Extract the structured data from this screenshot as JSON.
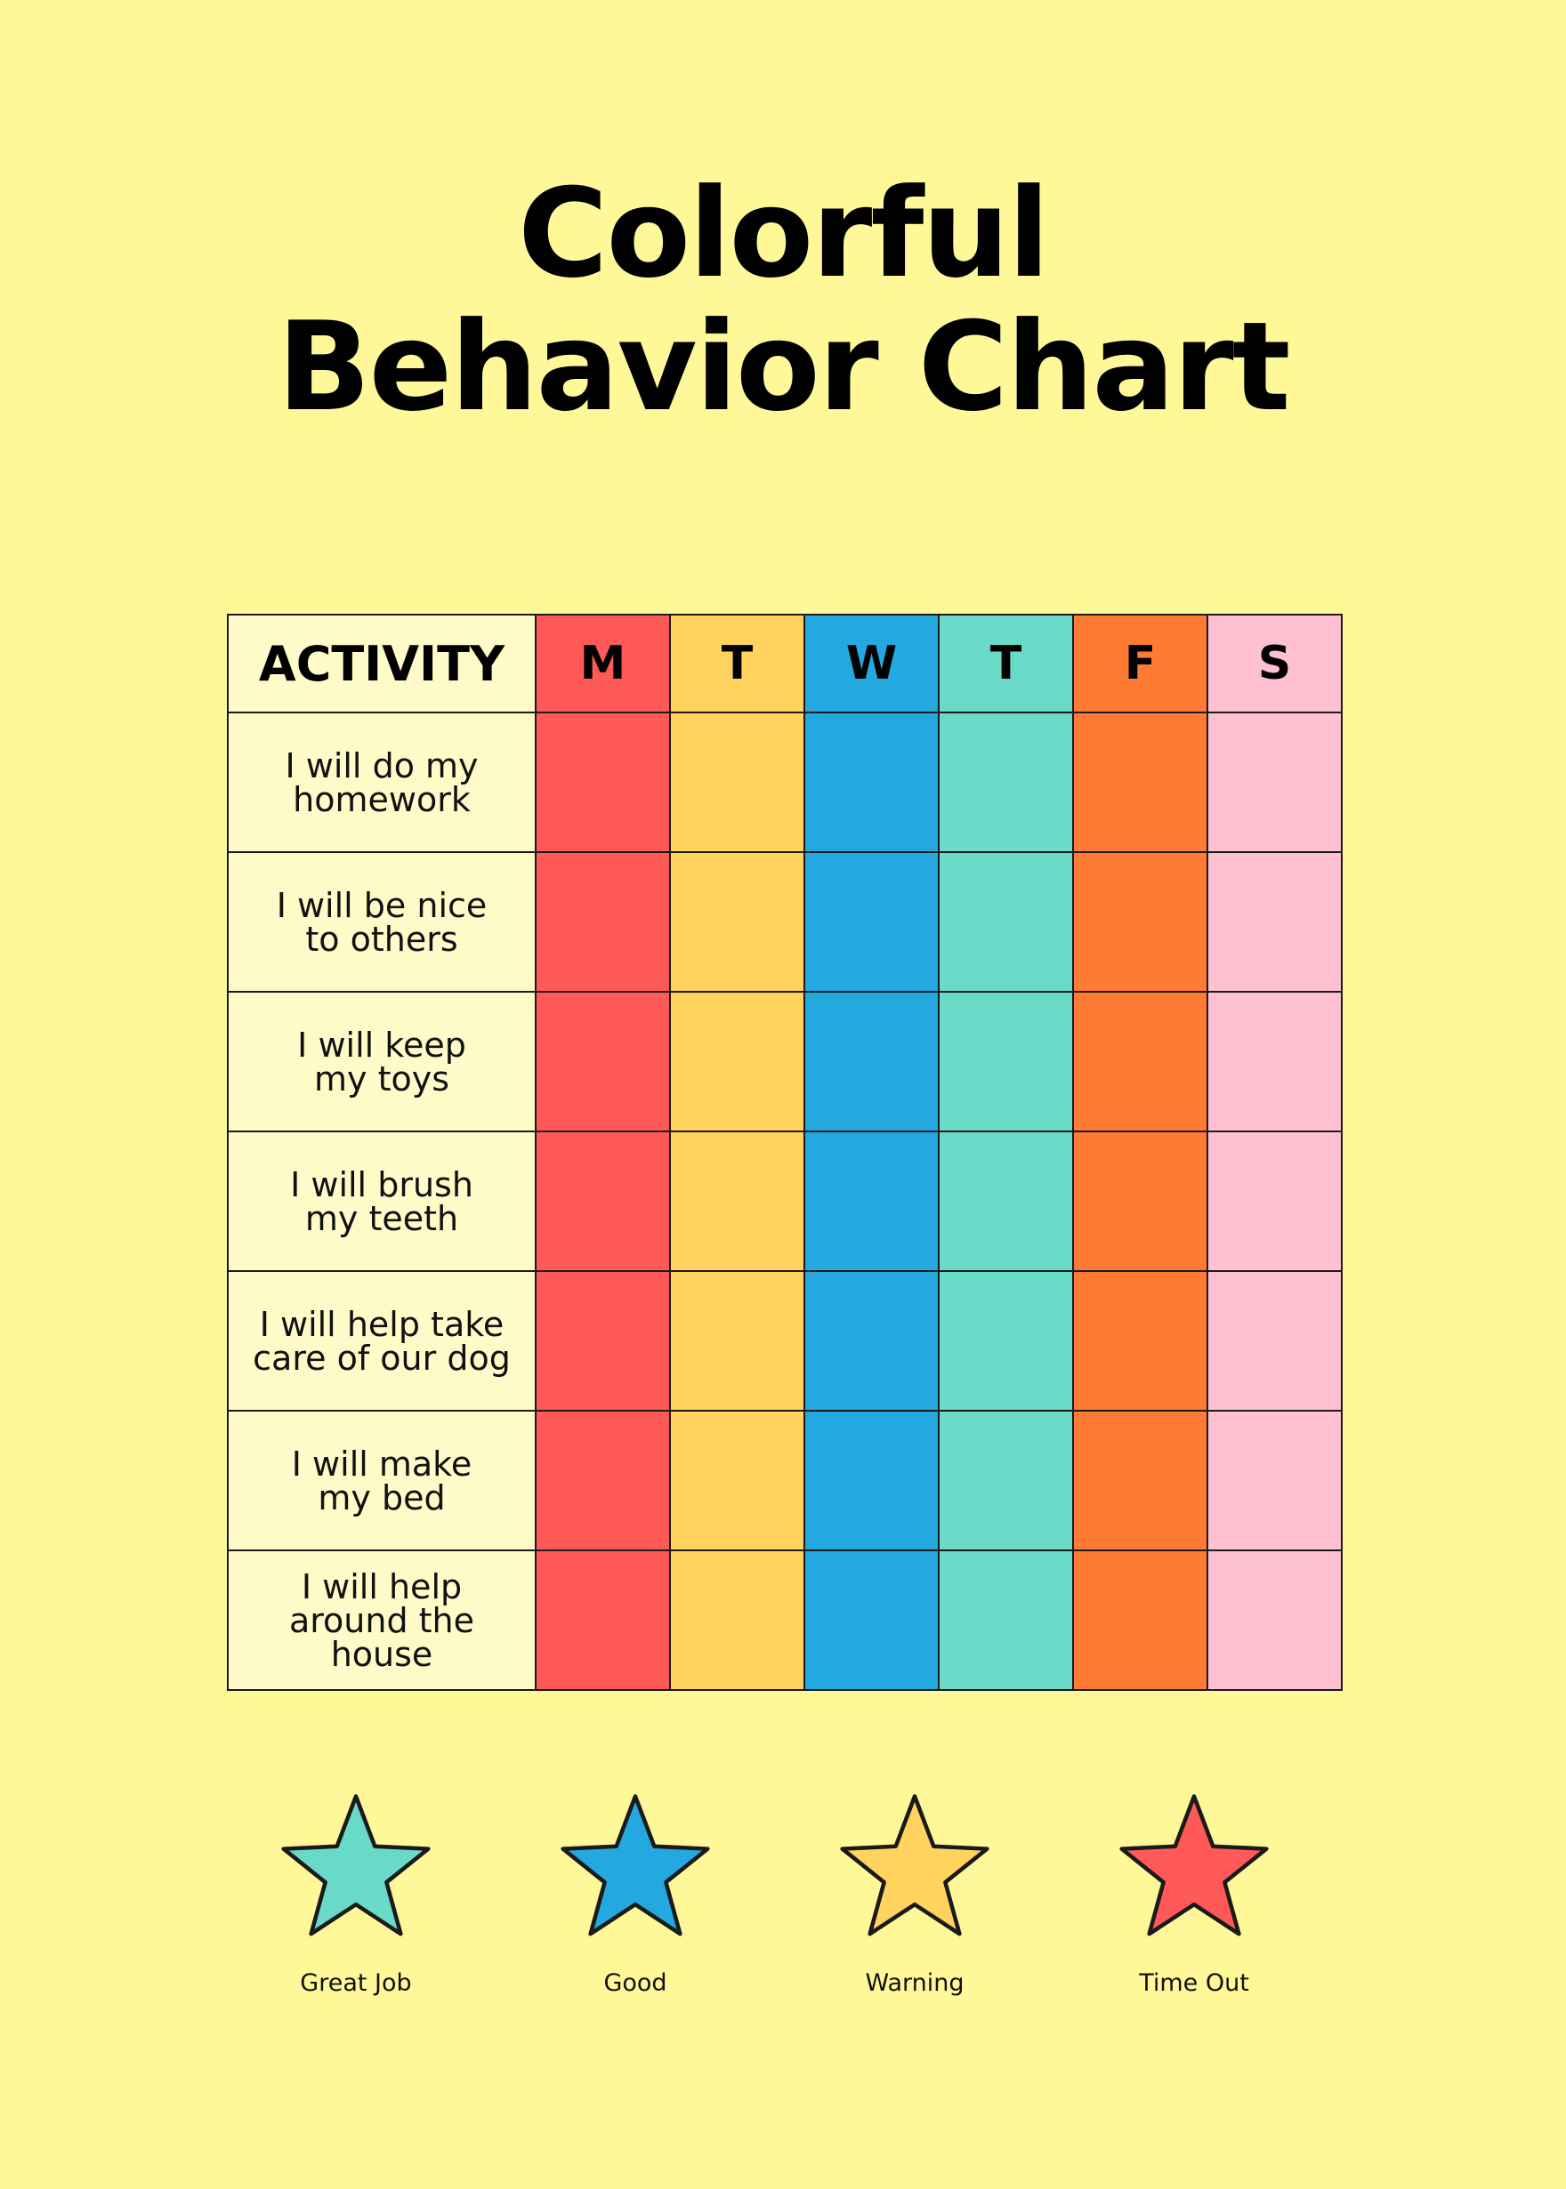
{
  "title": {
    "line1": "Colorful",
    "line2": "Behavior Chart"
  },
  "table": {
    "activity_header": "ACTIVITY",
    "days": [
      {
        "label": "M",
        "color": "#FF5A58"
      },
      {
        "label": "T",
        "color": "#FFD35E"
      },
      {
        "label": "W",
        "color": "#24A8E0"
      },
      {
        "label": "T",
        "color": "#6ADAC8"
      },
      {
        "label": "F",
        "color": "#FF7A33"
      },
      {
        "label": "S",
        "color": "#FFC1D2"
      }
    ],
    "activities": [
      "I will do my\nhomework",
      "I will be nice\nto others",
      "I will keep\nmy toys",
      "I will brush\nmy teeth",
      "I will help take\ncare of our dog",
      "I will make\nmy bed",
      "I will help\naround the\nhouse"
    ]
  },
  "legend": [
    {
      "label": "Great Job",
      "icon": "star-icon",
      "color": "#6ADAC8"
    },
    {
      "label": "Good",
      "icon": "star-icon",
      "color": "#24A8E0"
    },
    {
      "label": "Warning",
      "icon": "star-icon",
      "color": "#FFD35E"
    },
    {
      "label": "Time Out",
      "icon": "star-icon",
      "color": "#FF5A58"
    }
  ]
}
